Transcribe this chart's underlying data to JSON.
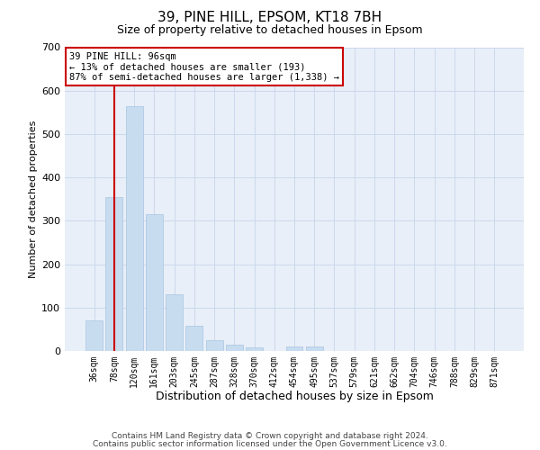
{
  "title1": "39, PINE HILL, EPSOM, KT18 7BH",
  "title2": "Size of property relative to detached houses in Epsom",
  "xlabel": "Distribution of detached houses by size in Epsom",
  "ylabel": "Number of detached properties",
  "categories": [
    "36sqm",
    "78sqm",
    "120sqm",
    "161sqm",
    "203sqm",
    "245sqm",
    "287sqm",
    "328sqm",
    "370sqm",
    "412sqm",
    "454sqm",
    "495sqm",
    "537sqm",
    "579sqm",
    "621sqm",
    "662sqm",
    "704sqm",
    "746sqm",
    "788sqm",
    "829sqm",
    "871sqm"
  ],
  "values": [
    70,
    355,
    565,
    315,
    130,
    58,
    25,
    15,
    8,
    0,
    10,
    10,
    0,
    0,
    0,
    0,
    0,
    0,
    0,
    0,
    0
  ],
  "bar_color": "#c8dcf0",
  "bar_edge_color": "#a8c4e0",
  "grid_color": "#ccd8ec",
  "background_color": "#e8eff8",
  "vline_x": 1.0,
  "vline_color": "#cc0000",
  "annotation_text": "39 PINE HILL: 96sqm\n← 13% of detached houses are smaller (193)\n87% of semi-detached houses are larger (1,338) →",
  "annotation_box_facecolor": "#ffffff",
  "annotation_box_edgecolor": "#cc0000",
  "ylim": [
    0,
    700
  ],
  "yticks": [
    0,
    100,
    200,
    300,
    400,
    500,
    600,
    700
  ],
  "footer1": "Contains HM Land Registry data © Crown copyright and database right 2024.",
  "footer2": "Contains public sector information licensed under the Open Government Licence v3.0.",
  "title1_fontsize": 11,
  "title2_fontsize": 9,
  "xlabel_fontsize": 9,
  "ylabel_fontsize": 8,
  "tick_fontsize": 7,
  "footer_fontsize": 6.5,
  "annot_fontsize": 7.5
}
